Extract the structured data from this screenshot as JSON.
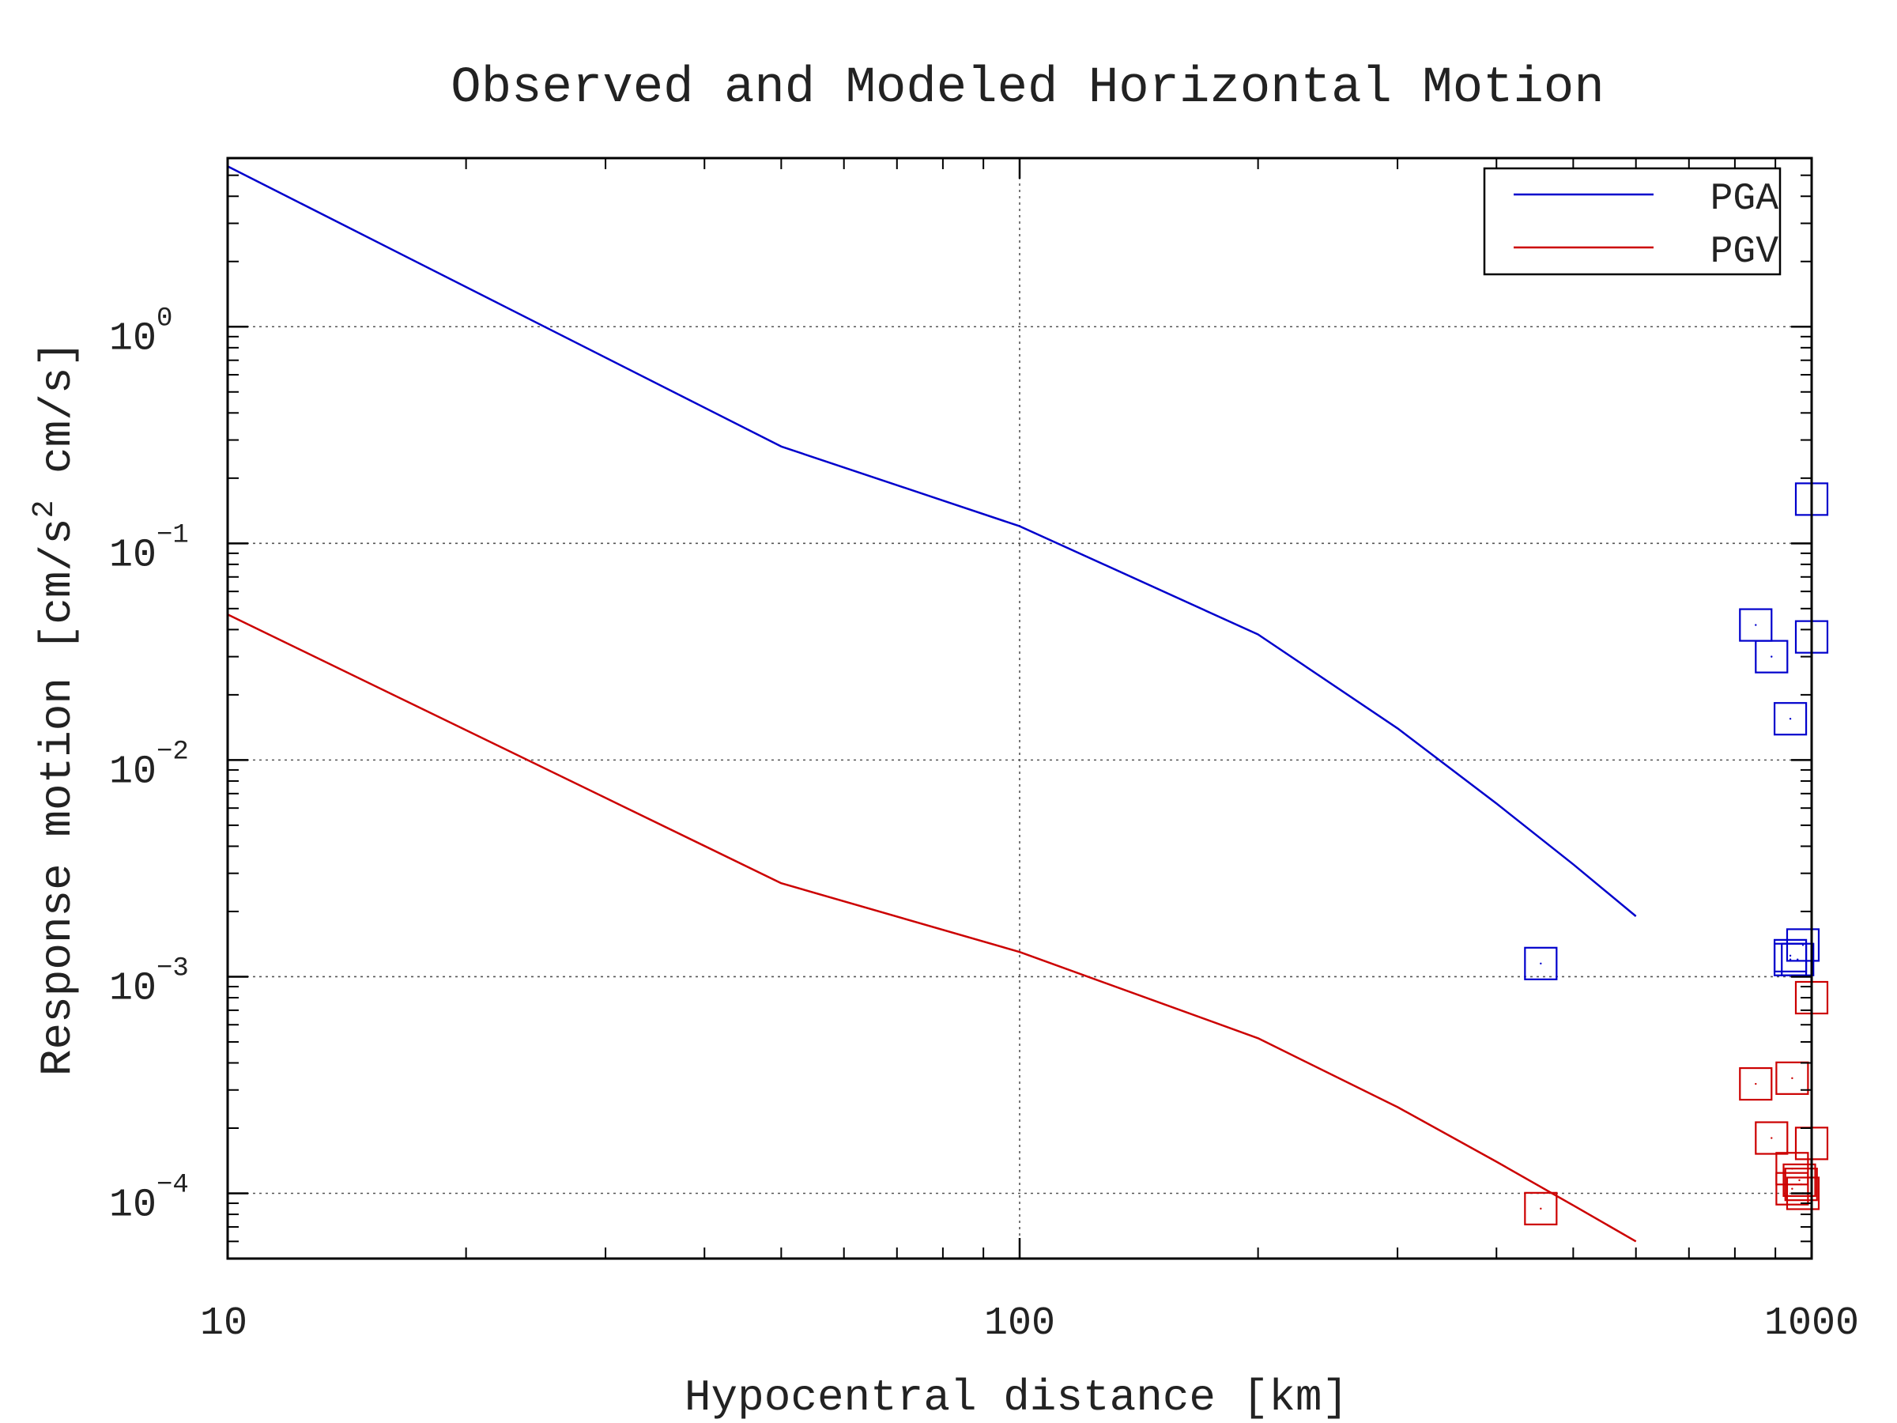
{
  "chart_data": {
    "type": "scatter",
    "title": "Observed and Modeled Horizontal Motion",
    "xlabel": "Hypocentral distance [km]",
    "ylabel": {
      "main": "Response motion  [cm/s",
      "sup": "2",
      "rest": "   cm/s]"
    },
    "x_scale": "log",
    "y_scale": "log",
    "xlim": [
      10,
      1000
    ],
    "ylim": [
      5e-05,
      6
    ],
    "x_ticks": [
      {
        "value": 10,
        "label": "10"
      },
      {
        "value": 100,
        "label": "100"
      },
      {
        "value": 1000,
        "label": "1000"
      }
    ],
    "y_ticks": [
      {
        "value": 1,
        "base": "10",
        "exp": "0"
      },
      {
        "value": 0.1,
        "base": "10",
        "exp": "−1"
      },
      {
        "value": 0.01,
        "base": "10",
        "exp": "−2"
      },
      {
        "value": 0.001,
        "base": "10",
        "exp": "−3"
      },
      {
        "value": 0.0001,
        "base": "10",
        "exp": "−4"
      }
    ],
    "grid": true,
    "legend_position": "top-right",
    "series": [
      {
        "name": "PGA",
        "color": "#0000cc",
        "kind": "line",
        "x": [
          10,
          50,
          100,
          200,
          300,
          400,
          500,
          600
        ],
        "y": [
          5.5,
          0.28,
          0.12,
          0.038,
          0.014,
          0.0063,
          0.0033,
          0.0019
        ]
      },
      {
        "name": "PGV",
        "color": "#cc0000",
        "kind": "line",
        "x": [
          10,
          50,
          100,
          200,
          300,
          400,
          500,
          600
        ],
        "y": [
          0.047,
          0.0027,
          0.0013,
          0.00052,
          0.00025,
          0.00014,
          8.8e-05,
          6e-05
        ]
      },
      {
        "name": "",
        "color": "#0000cc",
        "kind": "markers",
        "marker": "open-square",
        "x": [
          455,
          850,
          890,
          940,
          1000,
          1000,
          940,
          960,
          940,
          975
        ],
        "y": [
          0.00115,
          0.042,
          0.03,
          0.0155,
          0.16,
          0.037,
          0.0012,
          0.0012,
          0.00125,
          0.0014
        ]
      },
      {
        "name": "",
        "color": "#cc0000",
        "kind": "markers",
        "marker": "open-square",
        "x": [
          455,
          850,
          890,
          945,
          1000,
          1000,
          945,
          945,
          970,
          965,
          975
        ],
        "y": [
          8.5e-05,
          0.00032,
          0.00018,
          0.00034,
          0.00017,
          0.0008,
          0.00013,
          0.000105,
          0.00011,
          0.000115,
          0.0001
        ]
      }
    ]
  }
}
